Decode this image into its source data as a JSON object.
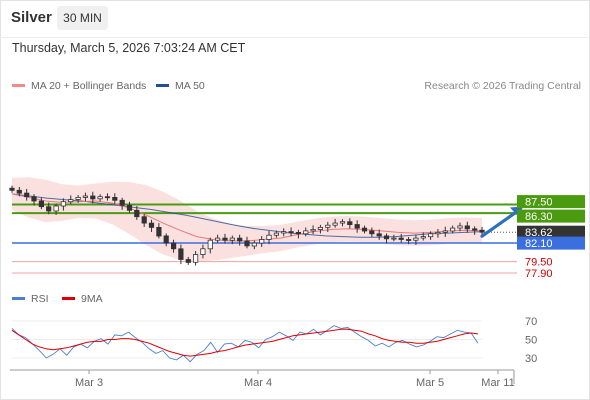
{
  "header": {
    "instrument": "Silver",
    "timeframe": "30 MIN",
    "datetime": "Thursday, March 5, 2026 7:03:24 AM CET"
  },
  "legend_top": [
    {
      "label": "MA 20 + Bollinger Bands",
      "color": "#f08b8b"
    },
    {
      "label": "MA 50",
      "color": "#1f4f99"
    }
  ],
  "credit": "Research © 2026 Trading Central",
  "legend_bottom": [
    {
      "label": "RSI",
      "color": "#4a7fd4"
    },
    {
      "label": "9MA",
      "color": "#e00000"
    }
  ],
  "colors": {
    "resistance": "#4a9b0f",
    "support": "#3b6fe0",
    "target_line": "#f2a0a0",
    "target_text": "#cc0000",
    "current_tag": "#333333",
    "bands": "#f7c6c6",
    "candle": "#333333",
    "arrow": "#2f6fbf"
  },
  "chart_data": [
    {
      "type": "candlestick",
      "title": "Silver",
      "timeframe": "30 MIN",
      "x_ticks": [
        "Mar 3",
        "Mar 4",
        "Mar 5",
        "Mar 11"
      ],
      "y_price_tags": [
        "87.50",
        "86.30",
        "83.62",
        "82.10",
        "79.50",
        "77.90"
      ],
      "ylim": [
        77.0,
        90.5
      ],
      "current_price": 83.62,
      "resistance_levels": [
        87.5,
        86.3
      ],
      "pivot_level": 82.1,
      "support_targets": [
        79.5,
        77.9
      ],
      "forecast": "up",
      "close": [
        89.5,
        89.1,
        88.6,
        88.0,
        87.2,
        86.6,
        87.3,
        87.9,
        88.2,
        88.5,
        88.7,
        88.3,
        88.6,
        88.5,
        88.1,
        87.4,
        86.7,
        85.8,
        84.9,
        84.3,
        83.1,
        82.1,
        81.3,
        79.8,
        79.4,
        80.5,
        81.3,
        82.5,
        82.8,
        82.5,
        82.8,
        82.4,
        81.7,
        82.1,
        82.6,
        83.2,
        83.5,
        83.7,
        83.6,
        83.4,
        83.8,
        84.0,
        84.3,
        84.6,
        84.9,
        85.1,
        84.7,
        84.2,
        83.8,
        83.4,
        83.1,
        82.7,
        82.8,
        82.6,
        82.5,
        82.8,
        83.0,
        83.4,
        83.6,
        83.8,
        84.2,
        84.5,
        84.1,
        83.9,
        83.62
      ],
      "ma50": [
        89.0,
        88.7,
        88.4,
        88.2,
        88.0,
        87.7,
        87.4,
        87.1,
        86.8,
        86.4,
        86.0,
        85.5,
        85.0,
        84.5,
        84.1,
        83.8,
        83.5,
        83.3,
        83.1,
        83.0,
        82.9,
        82.9,
        83.0,
        83.2,
        83.4,
        83.5,
        83.6,
        83.7
      ],
      "ma20": [
        89.0,
        88.5,
        88.0,
        87.8,
        87.9,
        88.0,
        87.7,
        87.0,
        86.0,
        84.9,
        83.9,
        83.0,
        82.6,
        82.4,
        82.4,
        82.6,
        82.8,
        83.3,
        83.7,
        84.0,
        84.1,
        84.0,
        83.8,
        83.6,
        83.5,
        83.6,
        83.8,
        83.9,
        83.8
      ]
    },
    {
      "type": "line",
      "name": "RSI",
      "ylim": [
        20,
        80
      ],
      "y_ticks": [
        70,
        50,
        30
      ],
      "rsi": [
        62,
        55,
        52,
        45,
        38,
        30,
        34,
        40,
        33,
        42,
        45,
        41,
        48,
        51,
        45,
        55,
        54,
        58,
        52,
        47,
        40,
        35,
        38,
        30,
        28,
        33,
        26,
        34,
        38,
        47,
        36,
        45,
        46,
        42,
        49,
        47,
        41,
        50,
        53,
        58,
        54,
        49,
        58,
        56,
        61,
        55,
        60,
        65,
        62,
        63,
        58,
        53,
        49,
        43,
        46,
        42,
        47,
        49,
        45,
        42,
        44,
        48,
        53,
        52,
        56,
        60,
        58,
        57,
        46
      ],
      "ma9": [
        60,
        55,
        50,
        45,
        42,
        40,
        39,
        40,
        41,
        43,
        45,
        47,
        48,
        48,
        50,
        50,
        51,
        51,
        50,
        48,
        46,
        43,
        40,
        37,
        35,
        33,
        32,
        33,
        34,
        35,
        37,
        38,
        40,
        42,
        44,
        45,
        46,
        47,
        48,
        50,
        52,
        54,
        55,
        56,
        57,
        58,
        59,
        60,
        61,
        61,
        60,
        59,
        56,
        54,
        51,
        49,
        48,
        47,
        47,
        46,
        46,
        47,
        48,
        50,
        52,
        54,
        56,
        57,
        56
      ]
    }
  ]
}
